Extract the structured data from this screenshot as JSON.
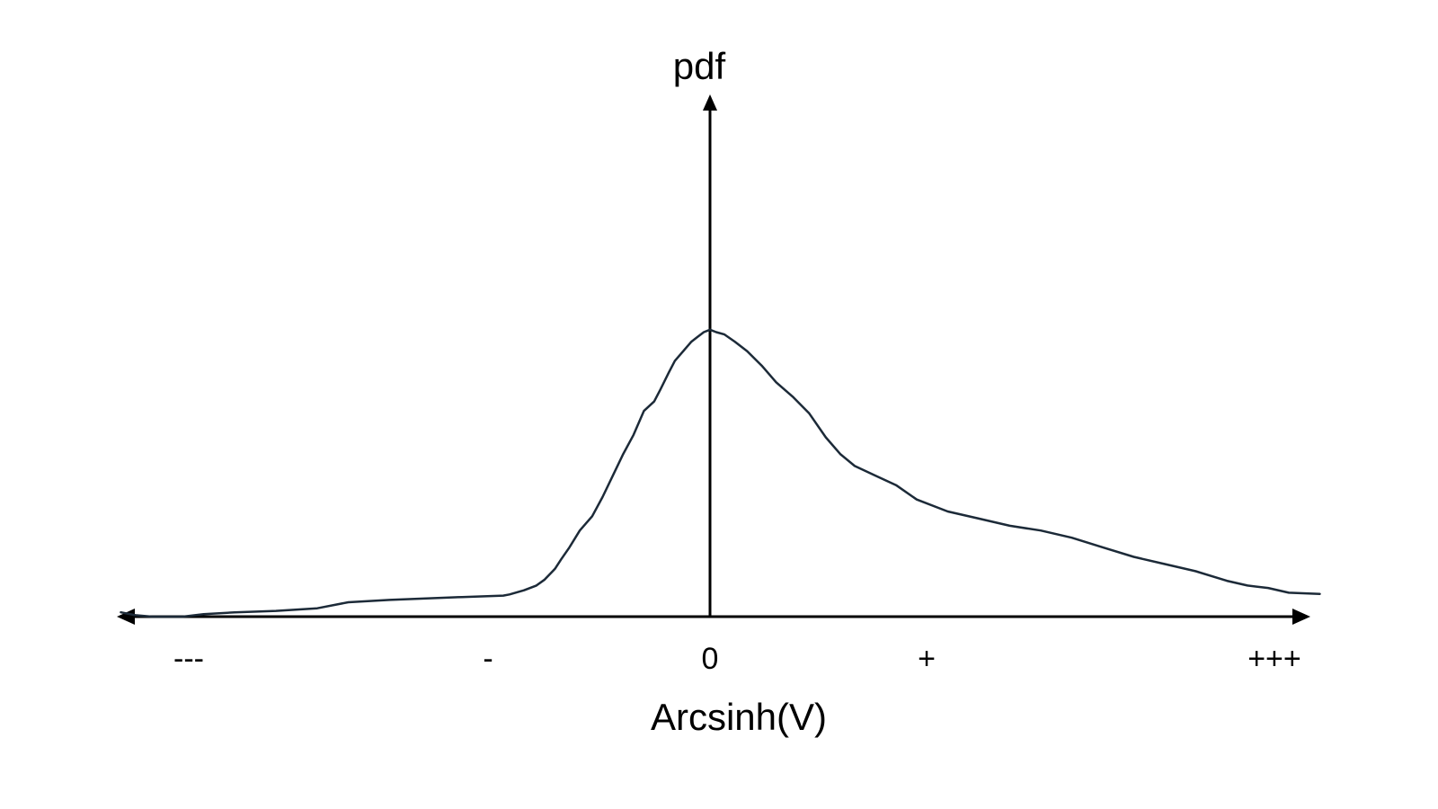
{
  "chart_data": {
    "type": "line",
    "title": "",
    "xlabel": "Arcsinh(V)",
    "ylabel": "pdf",
    "x_tick_labels": [
      "---",
      "-",
      "0",
      "+",
      "+++"
    ],
    "xlim": [
      -3,
      3
    ],
    "ylim": [
      0,
      1.2
    ],
    "grid": false,
    "legend": "none",
    "colors": {
      "axis": "#000000",
      "curve": "#1c2a38"
    },
    "series": [
      {
        "x": [
          -2.85,
          -2.78,
          -2.7,
          -2.55,
          -2.45,
          -2.3,
          -2.1,
          -1.9,
          -1.75,
          -1.55,
          -1.4,
          -1.2,
          -1.0,
          -0.97,
          -0.9,
          -0.84,
          -0.8,
          -0.75,
          -0.72,
          -0.68,
          -0.63,
          -0.57,
          -0.52,
          -0.47,
          -0.42,
          -0.37,
          -0.32,
          -0.27,
          -0.24,
          -0.2,
          -0.17,
          -0.14,
          -0.12,
          -0.09,
          -0.06,
          -0.03,
          0.0,
          0.03,
          0.07,
          0.12,
          0.18,
          0.25,
          0.32,
          0.4,
          0.48,
          0.56,
          0.63,
          0.7,
          0.8,
          0.9,
          1.0,
          1.15,
          1.3,
          1.45,
          1.6,
          1.75,
          1.9,
          2.05,
          2.2,
          2.35,
          2.5,
          2.6,
          2.7,
          2.8,
          2.95
        ],
        "values": [
          0.018,
          0.006,
          0.0,
          0.0,
          0.01,
          0.018,
          0.024,
          0.035,
          0.06,
          0.07,
          0.075,
          0.082,
          0.088,
          0.093,
          0.11,
          0.13,
          0.155,
          0.2,
          0.24,
          0.29,
          0.36,
          0.42,
          0.5,
          0.59,
          0.68,
          0.76,
          0.86,
          0.9,
          0.95,
          1.02,
          1.07,
          1.1,
          1.12,
          1.15,
          1.17,
          1.19,
          1.2,
          1.19,
          1.18,
          1.15,
          1.11,
          1.05,
          0.98,
          0.92,
          0.85,
          0.75,
          0.68,
          0.63,
          0.59,
          0.55,
          0.49,
          0.44,
          0.41,
          0.38,
          0.36,
          0.33,
          0.29,
          0.25,
          0.22,
          0.19,
          0.15,
          0.13,
          0.12,
          0.1,
          0.095
        ]
      }
    ]
  }
}
